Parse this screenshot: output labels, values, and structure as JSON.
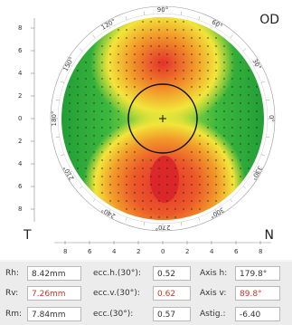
{
  "map": {
    "eye": "OD",
    "temporal": "T",
    "nasal": "N",
    "y_ticks": [
      "8",
      "6",
      "4",
      "2",
      "0",
      "2",
      "4",
      "6",
      "8"
    ],
    "x_ticks": [
      "8",
      "6",
      "4",
      "2",
      "0",
      "2",
      "4",
      "6",
      "8"
    ],
    "angles": [
      "90°",
      "60°",
      "30°",
      "0°",
      "330°",
      "300°",
      "270°",
      "240°",
      "210°",
      "180°",
      "150°",
      "120°"
    ],
    "colors": {
      "green": "#2eae3a",
      "yellow": "#f2e53a",
      "orange": "#f29a2a",
      "red": "#e4312b"
    }
  },
  "readouts": {
    "rh": {
      "label": "Rh:",
      "value": "8.42mm"
    },
    "rv": {
      "label": "Rv:",
      "value": "7.26mm"
    },
    "rm": {
      "label": "Rm:",
      "value": "7.84mm"
    },
    "ecch": {
      "label": "ecc.h.(30°):",
      "value": "0.52"
    },
    "eccv": {
      "label": "ecc.v.(30°):",
      "value": "0.62"
    },
    "ecc": {
      "label": "ecc.(30°):",
      "value": "0.57"
    },
    "axh": {
      "label": "Axis h:",
      "value": "179.8°"
    },
    "axv": {
      "label": "Axis v:",
      "value": "89.8°"
    },
    "astig": {
      "label": "Astig.:",
      "value": "-6.40"
    }
  }
}
